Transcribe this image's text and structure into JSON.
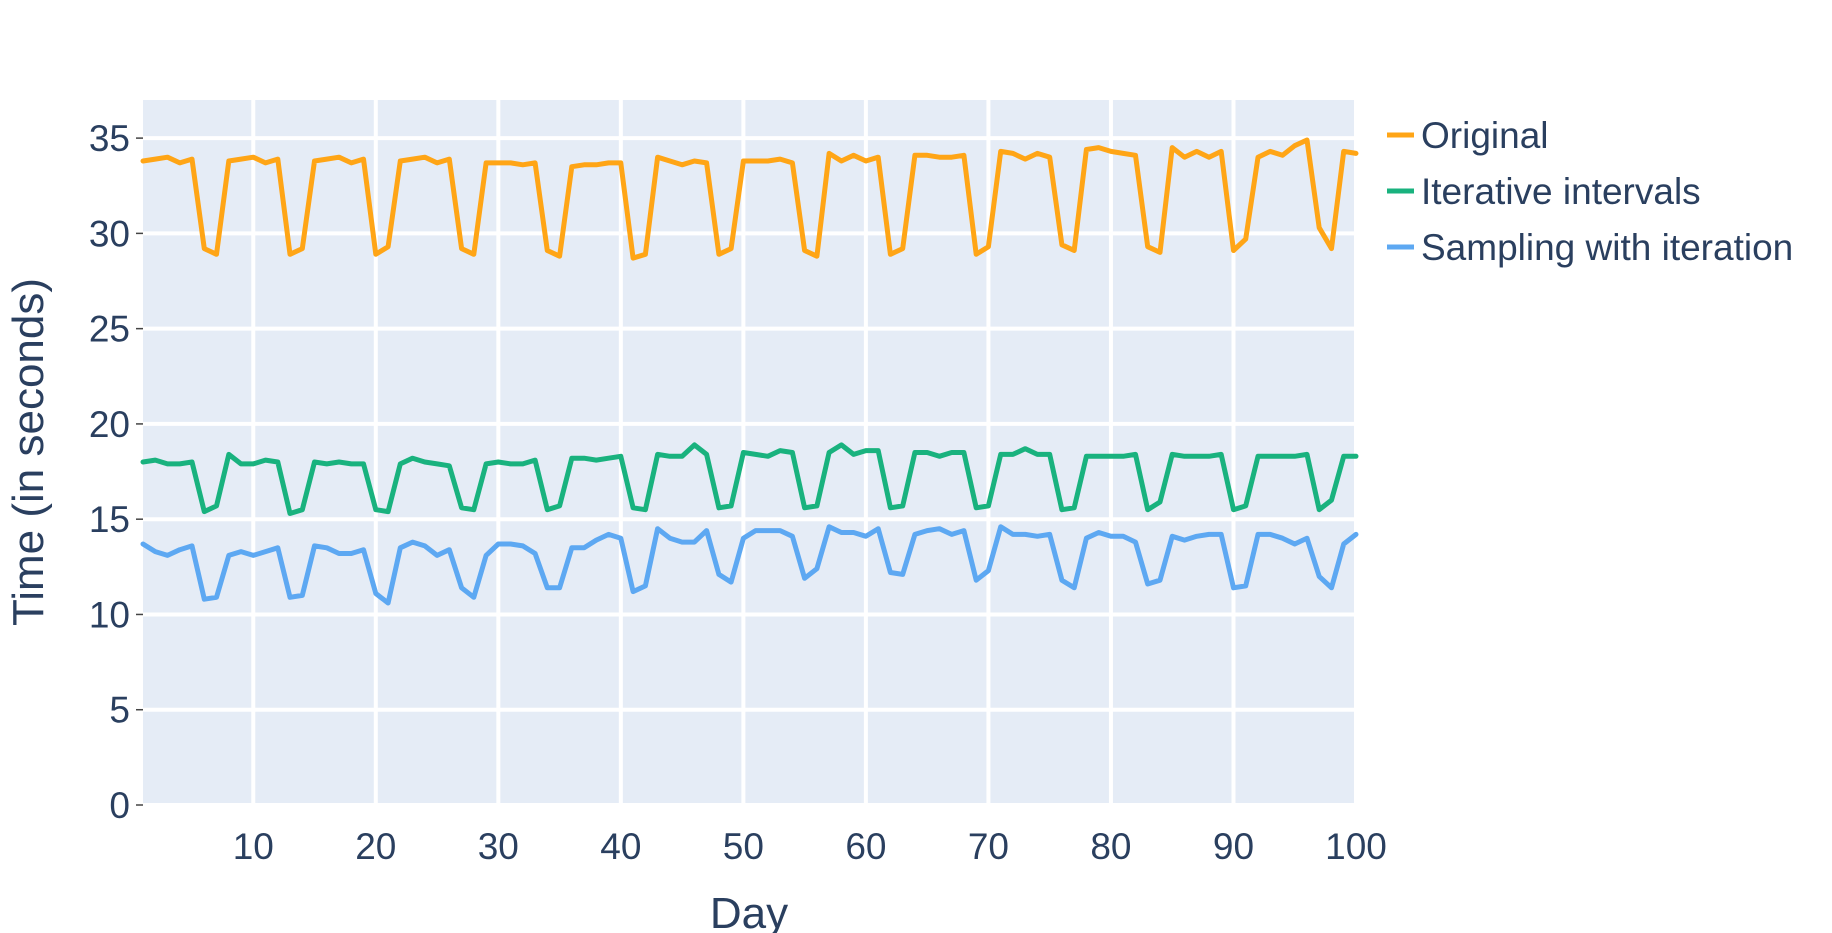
{
  "chart_data": {
    "type": "line",
    "title": "",
    "xlabel": "Day",
    "ylabel": "Time (in seconds)",
    "xlim": [
      1,
      100
    ],
    "ylim": [
      0,
      37
    ],
    "xticks": [
      10,
      20,
      30,
      40,
      50,
      60,
      70,
      80,
      90,
      100
    ],
    "yticks": [
      0,
      5,
      10,
      15,
      20,
      25,
      30,
      35
    ],
    "grid": true,
    "legend_position": "top-right-outside",
    "x": [
      1,
      2,
      3,
      4,
      5,
      6,
      7,
      8,
      9,
      10,
      11,
      12,
      13,
      14,
      15,
      16,
      17,
      18,
      19,
      20,
      21,
      22,
      23,
      24,
      25,
      26,
      27,
      28,
      29,
      30,
      31,
      32,
      33,
      34,
      35,
      36,
      37,
      38,
      39,
      40,
      41,
      42,
      43,
      44,
      45,
      46,
      47,
      48,
      49,
      50,
      51,
      52,
      53,
      54,
      55,
      56,
      57,
      58,
      59,
      60,
      61,
      62,
      63,
      64,
      65,
      66,
      67,
      68,
      69,
      70,
      71,
      72,
      73,
      74,
      75,
      76,
      77,
      78,
      79,
      80,
      81,
      82,
      83,
      84,
      85,
      86,
      87,
      88,
      89,
      90,
      91,
      92,
      93,
      94,
      95,
      96,
      97,
      98,
      99,
      100
    ],
    "series": [
      {
        "name": "Original",
        "color": "#FFA516",
        "values": [
          33.8,
          33.9,
          34.0,
          33.7,
          33.9,
          29.2,
          28.9,
          33.8,
          33.9,
          34.0,
          33.7,
          33.9,
          28.9,
          29.2,
          33.8,
          33.9,
          34.0,
          33.7,
          33.9,
          28.9,
          29.3,
          33.8,
          33.9,
          34.0,
          33.7,
          33.9,
          29.2,
          28.9,
          33.7,
          33.7,
          33.7,
          33.6,
          33.7,
          29.1,
          28.8,
          33.5,
          33.6,
          33.6,
          33.7,
          33.7,
          28.7,
          28.9,
          34.0,
          33.8,
          33.6,
          33.8,
          33.7,
          28.9,
          29.2,
          33.8,
          33.8,
          33.8,
          33.9,
          33.7,
          29.1,
          28.8,
          34.2,
          33.8,
          34.1,
          33.8,
          34.0,
          28.9,
          29.2,
          34.1,
          34.1,
          34.0,
          34.0,
          34.1,
          28.9,
          29.3,
          34.3,
          34.2,
          33.9,
          34.2,
          34.0,
          29.4,
          29.1,
          34.4,
          34.5,
          34.3,
          34.2,
          34.1,
          29.3,
          29.0,
          34.5,
          34.0,
          34.3,
          34.0,
          34.3,
          29.1,
          29.7,
          34.0,
          34.3,
          34.1,
          34.6,
          34.9,
          30.3,
          29.2,
          34.3,
          34.2
        ]
      },
      {
        "name": "Iterative intervals",
        "color": "#19B27E",
        "values": [
          18.0,
          18.1,
          17.9,
          17.9,
          18.0,
          15.4,
          15.7,
          18.4,
          17.9,
          17.9,
          18.1,
          18.0,
          15.3,
          15.5,
          18.0,
          17.9,
          18.0,
          17.9,
          17.9,
          15.5,
          15.4,
          17.9,
          18.2,
          18.0,
          17.9,
          17.8,
          15.6,
          15.5,
          17.9,
          18.0,
          17.9,
          17.9,
          18.1,
          15.5,
          15.7,
          18.2,
          18.2,
          18.1,
          18.2,
          18.3,
          15.6,
          15.5,
          18.4,
          18.3,
          18.3,
          18.9,
          18.4,
          15.6,
          15.7,
          18.5,
          18.4,
          18.3,
          18.6,
          18.5,
          15.6,
          15.7,
          18.5,
          18.9,
          18.4,
          18.6,
          18.6,
          15.6,
          15.7,
          18.5,
          18.5,
          18.3,
          18.5,
          18.5,
          15.6,
          15.7,
          18.4,
          18.4,
          18.7,
          18.4,
          18.4,
          15.5,
          15.6,
          18.3,
          18.3,
          18.3,
          18.3,
          18.4,
          15.5,
          15.9,
          18.4,
          18.3,
          18.3,
          18.3,
          18.4,
          15.5,
          15.7,
          18.3,
          18.3,
          18.3,
          18.3,
          18.4,
          15.5,
          16.0,
          18.3,
          18.3
        ]
      },
      {
        "name": "Sampling with iteration",
        "color": "#5DA8F2",
        "values": [
          13.7,
          13.3,
          13.1,
          13.4,
          13.6,
          10.8,
          10.9,
          13.1,
          13.3,
          13.1,
          13.3,
          13.5,
          10.9,
          11.0,
          13.6,
          13.5,
          13.2,
          13.2,
          13.4,
          11.1,
          10.6,
          13.5,
          13.8,
          13.6,
          13.1,
          13.4,
          11.4,
          10.9,
          13.1,
          13.7,
          13.7,
          13.6,
          13.2,
          11.4,
          11.4,
          13.5,
          13.5,
          13.9,
          14.2,
          14.0,
          11.2,
          11.5,
          14.5,
          14.0,
          13.8,
          13.8,
          14.4,
          12.1,
          11.7,
          14.0,
          14.4,
          14.4,
          14.4,
          14.1,
          11.9,
          12.4,
          14.6,
          14.3,
          14.3,
          14.1,
          14.5,
          12.2,
          12.1,
          14.2,
          14.4,
          14.5,
          14.2,
          14.4,
          11.8,
          12.3,
          14.6,
          14.2,
          14.2,
          14.1,
          14.2,
          11.8,
          11.4,
          14.0,
          14.3,
          14.1,
          14.1,
          13.8,
          11.6,
          11.8,
          14.1,
          13.9,
          14.1,
          14.2,
          14.2,
          11.4,
          11.5,
          14.2,
          14.2,
          14.0,
          13.7,
          14.0,
          12.0,
          11.4,
          13.7,
          14.2
        ]
      }
    ]
  }
}
